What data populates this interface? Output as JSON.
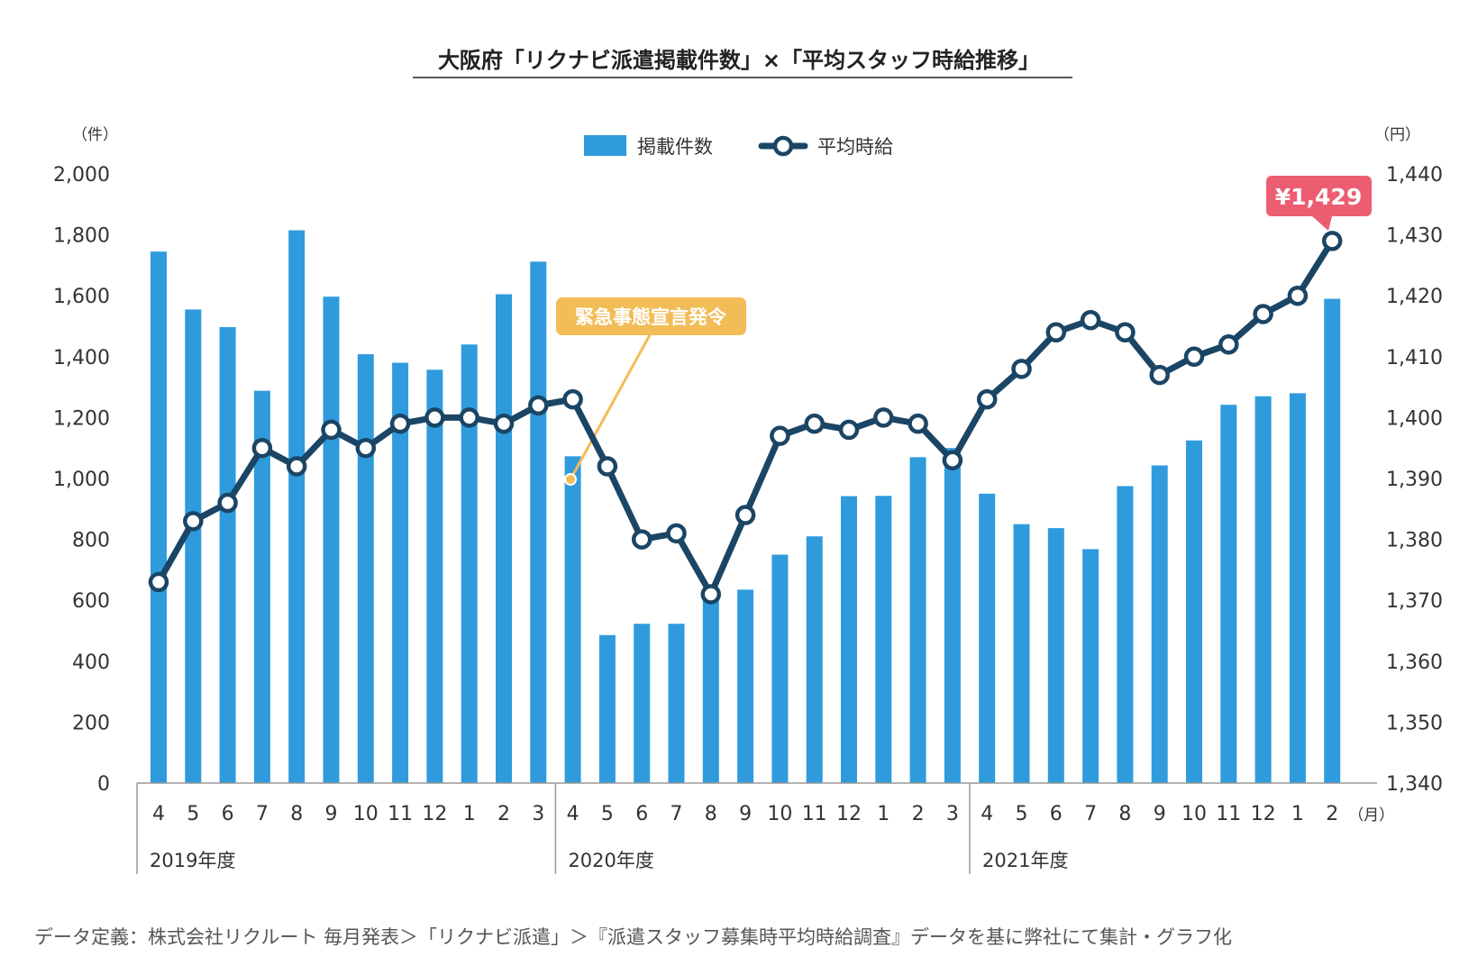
{
  "chart_data": {
    "type": "bar+line",
    "title": "大阪府「リクナビ派遣掲載件数」×「平均スタッフ時給推移」",
    "left_axis": {
      "unit": "（件）",
      "min": 0,
      "max": 2000,
      "step": 200,
      "ticks": [
        "0",
        "200",
        "400",
        "600",
        "800",
        "1,000",
        "1,200",
        "1,400",
        "1,600",
        "1,800",
        "2,000"
      ]
    },
    "right_axis": {
      "unit": "（円）",
      "min": 1340,
      "max": 1440,
      "step": 10,
      "ticks": [
        "1,340",
        "1,350",
        "1,360",
        "1,370",
        "1,380",
        "1,390",
        "1,400",
        "1,410",
        "1,420",
        "1,430",
        "1,440"
      ]
    },
    "x_unit": "（月）",
    "months": [
      "4",
      "5",
      "6",
      "7",
      "8",
      "9",
      "10",
      "11",
      "12",
      "1",
      "2",
      "3",
      "4",
      "5",
      "6",
      "7",
      "8",
      "9",
      "10",
      "11",
      "12",
      "1",
      "2",
      "3",
      "4",
      "5",
      "6",
      "7",
      "8",
      "9",
      "10",
      "11",
      "12",
      "1",
      "2"
    ],
    "fiscal_years": [
      {
        "label": "2019年度",
        "start": 0,
        "count": 12
      },
      {
        "label": "2020年度",
        "start": 12,
        "count": 12
      },
      {
        "label": "2021年度",
        "start": 24,
        "count": 11
      }
    ],
    "series": [
      {
        "name": "掲載件数",
        "type": "bar",
        "axis": "left",
        "color": "#2f9bdc",
        "values": [
          1745,
          1555,
          1497,
          1288,
          1815,
          1597,
          1408,
          1380,
          1357,
          1440,
          1605,
          1712,
          1073,
          486,
          523,
          523,
          607,
          635,
          750,
          810,
          942,
          943,
          1070,
          1100,
          950,
          850,
          837,
          768,
          975,
          1043,
          1125,
          1242,
          1270,
          1280,
          1590
        ]
      },
      {
        "name": "平均時給",
        "type": "line",
        "axis": "right",
        "color": "#1b4565",
        "values": [
          1373,
          1383,
          1386,
          1395,
          1392,
          1398,
          1395,
          1399,
          1400,
          1400,
          1399,
          1402,
          1403,
          1392,
          1380,
          1381,
          1371,
          1384,
          1397,
          1399,
          1398,
          1400,
          1399,
          1393,
          1403,
          1408,
          1414,
          1416,
          1414,
          1407,
          1410,
          1412,
          1417,
          1420,
          1429
        ]
      }
    ],
    "annotations": [
      {
        "text": "緊急事態宣言発令",
        "color": "#f2bc57",
        "index": 12
      },
      {
        "text": "¥1,429",
        "color": "#ec5d72",
        "index": 34
      }
    ],
    "legend_position": "top-center",
    "grid": false,
    "footnote": "データ定義：株式会社リクルート 毎月発表＞「リクナビ派遣」＞『派遣スタッフ募集時平均時給調査』データを基に弊社にて集計・グラフ化"
  }
}
